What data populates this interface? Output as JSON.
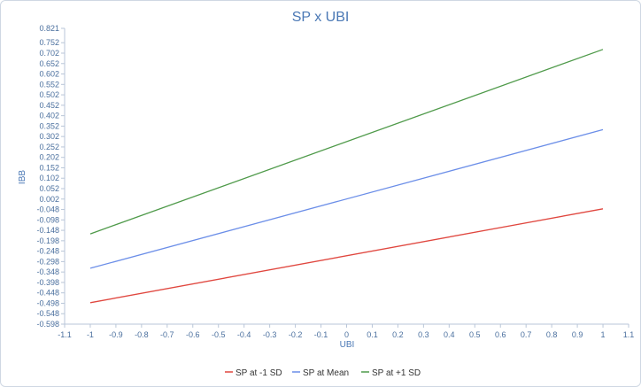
{
  "chart_data": {
    "type": "line",
    "title": "SP x UBI",
    "xlabel": "UBI",
    "ylabel": "IBB",
    "xlim": [
      -1.1,
      1.1
    ],
    "ylim": [
      -0.598,
      0.821
    ],
    "x_ticks": [
      "-1.1",
      "-1",
      "-0.9",
      "-0.8",
      "-0.7",
      "-0.6",
      "-0.5",
      "-0.4",
      "-0.3",
      "-0.2",
      "-0.1",
      "0",
      "0.1",
      "0.2",
      "0.3",
      "0.4",
      "0.5",
      "0.6",
      "0.7",
      "0.8",
      "0.9",
      "1",
      "1.1"
    ],
    "y_ticks": [
      "0.821",
      "0.752",
      "0.702",
      "0.652",
      "0.602",
      "0.552",
      "0.502",
      "0.452",
      "0.402",
      "0.352",
      "0.302",
      "0.252",
      "0.202",
      "0.152",
      "0.102",
      "0.052",
      "0.002",
      "-0.048",
      "-0.098",
      "-0.148",
      "-0.198",
      "-0.248",
      "-0.298",
      "-0.348",
      "-0.398",
      "-0.448",
      "-0.498",
      "-0.548",
      "-0.598"
    ],
    "grid": false,
    "legend_position": "bottom",
    "series": [
      {
        "name": "SP at -1 SD",
        "color": "#e0473f",
        "x": [
          -1,
          1
        ],
        "y": [
          -0.495,
          -0.045
        ]
      },
      {
        "name": "SP at Mean",
        "color": "#6b8ee8",
        "x": [
          -1,
          1
        ],
        "y": [
          -0.33,
          0.335
        ]
      },
      {
        "name": "SP at +1 SD",
        "color": "#4f9a4a",
        "x": [
          -1,
          1
        ],
        "y": [
          -0.165,
          0.72
        ]
      }
    ]
  }
}
